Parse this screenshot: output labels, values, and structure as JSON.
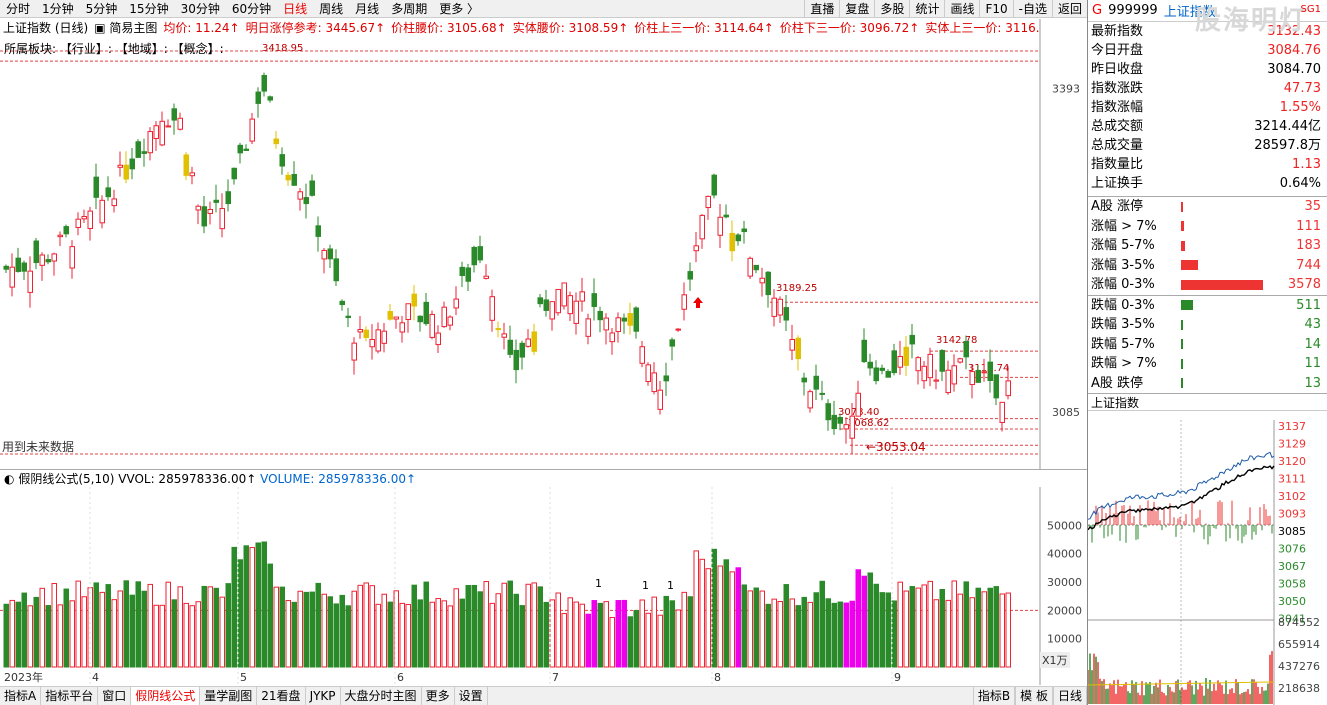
{
  "toolbar": {
    "periods": [
      "分时",
      "1分钟",
      "5分钟",
      "15分钟",
      "30分钟",
      "60分钟",
      "日线",
      "周线",
      "月线",
      "多周期",
      "更多 〉"
    ],
    "active_period": "日线",
    "right": [
      "直播",
      "复盘",
      "多股",
      "统计",
      "画线",
      "F10",
      "-自选",
      "返回"
    ]
  },
  "info": {
    "title": "上证指数 (日线)",
    "mode": "简易主图",
    "items": [
      {
        "label": "均价: ",
        "value": "11.24↑"
      },
      {
        "label": "明日涨停参考: ",
        "value": "3445.67↑"
      },
      {
        "label": "价柱腰价: ",
        "value": "3105.68↑"
      },
      {
        "label": "实体腰价: ",
        "value": "3108.59↑"
      },
      {
        "label": "价柱上三一价: ",
        "value": "3114.64↑"
      },
      {
        "label": "价柱下三一价: ",
        "value": "3096.72↑"
      },
      {
        "label": "实体上三一价: ",
        "value": "3116.5"
      }
    ],
    "sector_line": "所属板块:   【行业】:              【地域】:        【概念】:"
  },
  "chart_data": {
    "type": "candlestick",
    "price_axis": [
      "3393",
      "3085"
    ],
    "annotations": [
      "3418.95",
      "3189.25",
      "3142.78",
      "3117.74",
      "3078.40",
      "3068.62",
      "3053.04"
    ],
    "month_labels": [
      "2023年",
      "4",
      "5",
      "6",
      "7",
      "8",
      "9"
    ],
    "note": "用到未来数据",
    "volume_axis": [
      "50000",
      "40000",
      "30000",
      "20000",
      "10000"
    ],
    "volume_unit": "X1万",
    "vol_markers": [
      "1",
      "1",
      "1"
    ]
  },
  "volume_header": {
    "formula": "假阴线公式(5,10)",
    "vvol": "VVOL: 285978336.00↑",
    "volume": "VOLUME: 285978336.00↑"
  },
  "bottom_tabs": [
    "指标A",
    "指标平台",
    "窗口",
    "假阴线公式",
    "量学副图",
    "21看盘",
    "JYKP",
    "大盘分时主图",
    "更多",
    "设置"
  ],
  "bottom_active": "假阴线公式",
  "bottom_right": [
    "指标B",
    "模 板",
    "日线"
  ],
  "panel": {
    "g": "G",
    "code": "999999",
    "name": "上证指数",
    "tag": "SG1",
    "watermark": "股海明灯",
    "quotes": [
      {
        "label": "最新指数",
        "value": "3132.43",
        "color": "red"
      },
      {
        "label": "今日开盘",
        "value": "3084.76",
        "color": "red"
      },
      {
        "label": "昨日收盘",
        "value": "3084.70",
        "color": "black"
      },
      {
        "label": "指数涨跌",
        "value": "47.73",
        "color": "red"
      },
      {
        "label": "指数涨幅",
        "value": "1.55%",
        "color": "red"
      },
      {
        "label": "总成交额",
        "value": "3214.44亿",
        "color": "black"
      },
      {
        "label": "总成交量",
        "value": "28597.8万",
        "color": "black"
      },
      {
        "label": "指数量比",
        "value": "1.13",
        "color": "red"
      },
      {
        "label": "上证换手",
        "value": "0.64%",
        "color": "black"
      }
    ],
    "up_stats": [
      {
        "label": "A股 涨停",
        "value": "35"
      },
      {
        "label": "涨幅 > 7%",
        "value": "111"
      },
      {
        "label": "涨幅 5-7%",
        "value": "183"
      },
      {
        "label": "涨幅 3-5%",
        "value": "744"
      },
      {
        "label": "涨幅 0-3%",
        "value": "3578"
      }
    ],
    "down_stats": [
      {
        "label": "跌幅 0-3%",
        "value": "511"
      },
      {
        "label": "跌幅 3-5%",
        "value": "43"
      },
      {
        "label": "跌幅 5-7%",
        "value": "14"
      },
      {
        "label": "跌幅 > 7%",
        "value": "11"
      },
      {
        "label": "A股 跌停",
        "value": "13"
      }
    ],
    "mini_title": "上证指数",
    "mini_axis_right": [
      "3137",
      "3129",
      "3120",
      "3111",
      "3102",
      "3093",
      "3085",
      "3076",
      "3067",
      "3058",
      "3050",
      "3041"
    ],
    "mini_vol_axis": [
      "874552",
      "655914",
      "437276",
      "218638"
    ]
  }
}
